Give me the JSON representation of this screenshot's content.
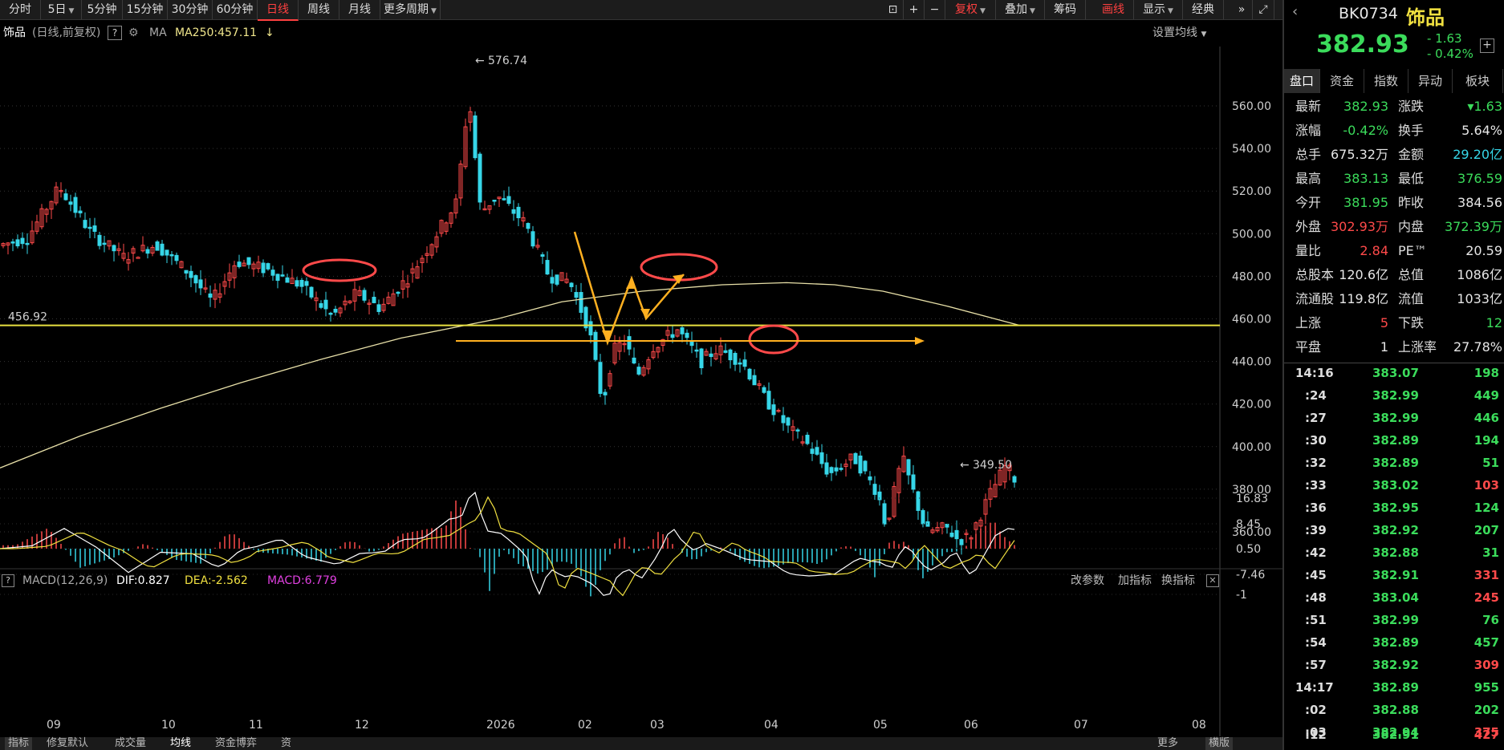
{
  "toolbar": {
    "periods": [
      "分时",
      "5日",
      "5分钟",
      "15分钟",
      "30分钟",
      "60分钟",
      "日线",
      "周线",
      "月线",
      "更多周期"
    ],
    "active_period": "日线",
    "right_buttons": [
      "复权",
      "叠加",
      "筹码",
      "画线",
      "显示",
      "经典"
    ]
  },
  "infobar": {
    "name": "饰品",
    "mode": "(日线,前复权)",
    "help": "?",
    "ma_label": "MA",
    "ma250": "MA250:457.11",
    "ma_arrow": "↓",
    "settings": "设置均线"
  },
  "macd_bar": {
    "name": "MACD(12,26,9)",
    "dif": "DIF:0.827",
    "dea": "DEA:-2.562",
    "macd": "MACD:6.779",
    "actions": [
      "改参数",
      "加指标",
      "换指标"
    ]
  },
  "bottom_tabs": [
    "指标",
    "修复默认",
    "成交量",
    "均线",
    "资金博弈",
    "资",
    "更多",
    "横版"
  ],
  "right_panel": {
    "code": "BK0734",
    "name": "饰品",
    "price": "382.93",
    "change": "- 1.63",
    "change_pct": "- 0.42%",
    "tabs": [
      "盘口",
      "资金",
      "指数",
      "异动",
      "板块"
    ],
    "quote_rows": [
      {
        "l1": "最新",
        "v1": "382.93",
        "c1": "green",
        "l2": "涨跌",
        "v2": "▾1.63",
        "c2": "green"
      },
      {
        "l1": "涨幅",
        "v1": "-0.42%",
        "c1": "green",
        "l2": "换手",
        "v2": "5.64%",
        "c2": "white"
      },
      {
        "l1": "总手",
        "v1": "675.32万",
        "c1": "white",
        "l2": "金额",
        "v2": "29.20亿",
        "c2": "cyan"
      },
      {
        "l1": "最高",
        "v1": "383.13",
        "c1": "green",
        "l2": "最低",
        "v2": "376.59",
        "c2": "green"
      },
      {
        "l1": "今开",
        "v1": "381.95",
        "c1": "green",
        "l2": "昨收",
        "v2": "384.56",
        "c2": "white"
      },
      {
        "l1": "外盘",
        "v1": "302.93万",
        "c1": "red",
        "l2": "内盘",
        "v2": "372.39万",
        "c2": "green"
      },
      {
        "l1": "量比",
        "v1": "2.84",
        "c1": "red",
        "l2": "PE™",
        "v2": "20.59",
        "c2": "white"
      },
      {
        "l1": "总股本",
        "v1": "120.6亿",
        "c1": "white",
        "l2": "总值",
        "v2": "1086亿",
        "c2": "white"
      },
      {
        "l1": "流通股",
        "v1": "119.8亿",
        "c1": "white",
        "l2": "流值",
        "v2": "1033亿",
        "c2": "white"
      },
      {
        "l1": "上涨",
        "v1": "5",
        "c1": "red",
        "l2": "下跌",
        "v2": "12",
        "c2": "green"
      },
      {
        "l1": "平盘",
        "v1": "1",
        "c1": "white",
        "l2": "上涨率",
        "v2": "27.78%",
        "c2": "white"
      }
    ],
    "ticks": [
      {
        "t": "14:16",
        "p": "383.07",
        "v": "198",
        "vc": "green"
      },
      {
        "t": ":24",
        "p": "382.99",
        "v": "449",
        "vc": "green"
      },
      {
        "t": ":27",
        "p": "382.99",
        "v": "446",
        "vc": "green"
      },
      {
        "t": ":30",
        "p": "382.89",
        "v": "194",
        "vc": "green"
      },
      {
        "t": ":32",
        "p": "382.89",
        "v": "51",
        "vc": "green"
      },
      {
        "t": ":33",
        "p": "383.02",
        "v": "103",
        "vc": "red"
      },
      {
        "t": ":36",
        "p": "382.95",
        "v": "124",
        "vc": "green"
      },
      {
        "t": ":39",
        "p": "382.92",
        "v": "207",
        "vc": "green"
      },
      {
        "t": ":42",
        "p": "382.88",
        "v": "31",
        "vc": "green"
      },
      {
        "t": ":45",
        "p": "382.91",
        "v": "331",
        "vc": "red"
      },
      {
        "t": ":48",
        "p": "383.04",
        "v": "245",
        "vc": "red"
      },
      {
        "t": ":51",
        "p": "382.99",
        "v": "76",
        "vc": "green"
      },
      {
        "t": ":54",
        "p": "382.89",
        "v": "457",
        "vc": "green"
      },
      {
        "t": ":57",
        "p": "382.92",
        "v": "309",
        "vc": "red"
      },
      {
        "t": "14:17",
        "p": "382.89",
        "v": "955",
        "vc": "green"
      },
      {
        "t": ":02",
        "p": "382.88",
        "v": "202",
        "vc": "green"
      },
      {
        "t": ":03",
        "p": "382.94",
        "v": "375",
        "vc": "red"
      },
      {
        "t": ":12",
        "p": "382.91",
        "v": "427",
        "vc": "red"
      }
    ]
  },
  "chart_data": {
    "type": "candlestick",
    "price_axis_ticks": [
      "560.00",
      "540.00",
      "520.00",
      "500.00",
      "480.00",
      "460.00",
      "440.00",
      "420.00",
      "400.00",
      "380.00",
      "360.00"
    ],
    "price_ylim": [
      348,
      580
    ],
    "x_labels": [
      "09",
      "10",
      "11",
      "12",
      "2026",
      "02",
      "03",
      "04",
      "05",
      "06",
      "07",
      "08"
    ],
    "high_marker": "576.74",
    "low_marker": "349.50",
    "support_line_label": "456.92",
    "support_value": 456.92,
    "ma250_points": [
      [
        0,
        390
      ],
      [
        100,
        405
      ],
      [
        200,
        418
      ],
      [
        300,
        430
      ],
      [
        400,
        441
      ],
      [
        500,
        451
      ],
      [
        620,
        460
      ],
      [
        700,
        468
      ],
      [
        800,
        473
      ],
      [
        900,
        476
      ],
      [
        980,
        477
      ],
      [
        1040,
        476
      ],
      [
        1100,
        473
      ],
      [
        1180,
        466
      ],
      [
        1270,
        457
      ]
    ],
    "price_path": [
      [
        0,
        494
      ],
      [
        40,
        498
      ],
      [
        80,
        522
      ],
      [
        120,
        500
      ],
      [
        160,
        489
      ],
      [
        200,
        495
      ],
      [
        240,
        482
      ],
      [
        270,
        468
      ],
      [
        300,
        487
      ],
      [
        340,
        483
      ],
      [
        380,
        476
      ],
      [
        420,
        461
      ],
      [
        450,
        472
      ],
      [
        480,
        465
      ],
      [
        520,
        482
      ],
      [
        550,
        500
      ],
      [
        575,
        515
      ],
      [
        590,
        565
      ],
      [
        605,
        510
      ],
      [
        625,
        518
      ],
      [
        660,
        505
      ],
      [
        690,
        480
      ],
      [
        715,
        478
      ],
      [
        740,
        455
      ],
      [
        757,
        420
      ],
      [
        770,
        445
      ],
      [
        785,
        450
      ],
      [
        800,
        433
      ],
      [
        820,
        447
      ],
      [
        850,
        455
      ],
      [
        880,
        440
      ],
      [
        900,
        446
      ],
      [
        930,
        440
      ],
      [
        960,
        422
      ],
      [
        990,
        408
      ],
      [
        1010,
        402
      ],
      [
        1040,
        387
      ],
      [
        1070,
        395
      ],
      [
        1100,
        378
      ],
      [
        1110,
        362
      ],
      [
        1130,
        395
      ],
      [
        1160,
        360
      ],
      [
        1185,
        362
      ],
      [
        1200,
        356
      ],
      [
        1215,
        358
      ],
      [
        1240,
        378
      ],
      [
        1260,
        392
      ],
      [
        1268,
        385
      ]
    ],
    "macd_axis_ticks": [
      "16.83",
      "8.45",
      "0.50",
      "-7.46",
      "-1"
    ]
  }
}
